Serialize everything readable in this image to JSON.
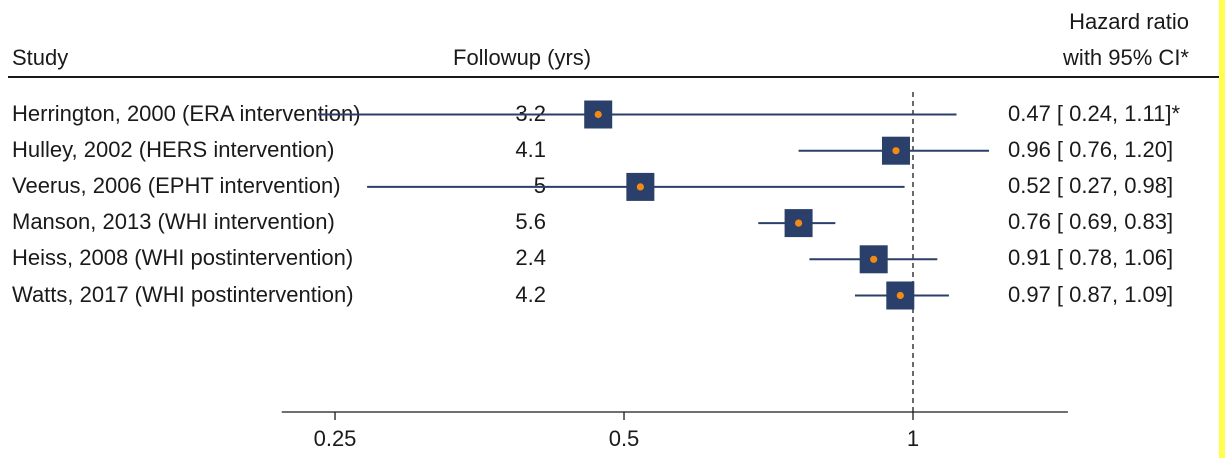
{
  "chart_data": {
    "type": "forest",
    "headers": {
      "study": "Study",
      "followup": "Followup (yrs)",
      "hr_line1": "Hazard ratio",
      "hr_line2": "with 95% CI*"
    },
    "rows": [
      {
        "study": "Herrington, 2000 (ERA intervention)",
        "followup": "3.2",
        "hr": 0.47,
        "lo": 0.24,
        "hi": 1.11,
        "label": "0.47 [ 0.24,  1.11]*"
      },
      {
        "study": "Hulley, 2002 (HERS intervention)",
        "followup": "4.1",
        "hr": 0.96,
        "lo": 0.76,
        "hi": 1.2,
        "label": "0.96 [ 0.76,  1.20]"
      },
      {
        "study": "Veerus, 2006 (EPHT intervention)",
        "followup": "5",
        "hr": 0.52,
        "lo": 0.27,
        "hi": 0.98,
        "label": "0.52 [ 0.27,  0.98]"
      },
      {
        "study": "Manson, 2013 (WHI intervention)",
        "followup": "5.6",
        "hr": 0.76,
        "lo": 0.69,
        "hi": 0.83,
        "label": "0.76 [ 0.69,  0.83]"
      },
      {
        "study": "Heiss, 2008 (WHI postintervention)",
        "followup": "2.4",
        "hr": 0.91,
        "lo": 0.78,
        "hi": 1.06,
        "label": "0.91 [ 0.78,  1.06]"
      },
      {
        "study": "Watts, 2017 (WHI postintervention)",
        "followup": "4.2",
        "hr": 0.97,
        "lo": 0.87,
        "hi": 1.09,
        "label": "0.97 [ 0.87,  1.09]"
      }
    ],
    "x_scale": "log",
    "xlim": [
      0.22,
      1.45
    ],
    "x_ticks": [
      0.25,
      0.5,
      1
    ],
    "x_tick_labels": [
      "0.25",
      "0.5",
      "1"
    ],
    "reference_line": 1,
    "colors": {
      "marker": "#2b3f6b",
      "ci_line": "#2b3f6b",
      "point": "#f28a16"
    }
  }
}
